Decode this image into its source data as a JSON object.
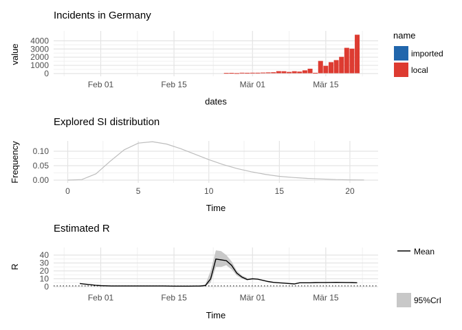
{
  "colors": {
    "imported": "#2166ac",
    "local": "#dd3b31",
    "si_line": "#bdbdbd",
    "mean_line": "#000000",
    "crl_fill": "#c8c8c8",
    "grid_major": "#e3e3e3",
    "grid_minor": "#f0f0f0",
    "axis_text": "#4d4d4d"
  },
  "chart_data": [
    {
      "type": "bar",
      "title": "Incidents in Germany",
      "xlabel": "dates",
      "ylabel": "value",
      "x_ticks": [
        "Feb 01",
        "Feb 15",
        "Mär 01",
        "Mär 15"
      ],
      "x_tick_days": [
        9,
        23,
        38,
        52
      ],
      "xlim_days": [
        0,
        62
      ],
      "x_origin": "2020-01-23",
      "y_ticks": [
        "0",
        "1000",
        "2000",
        "3000",
        "4000"
      ],
      "y_tick_values": [
        0,
        1000,
        2000,
        3000,
        4000
      ],
      "ylim": [
        0,
        4700
      ],
      "legend": {
        "title": "name",
        "position": "right",
        "items": [
          "imported",
          "local"
        ]
      },
      "series": [
        {
          "name": "local",
          "dates": [
            "2020-02-25",
            "2020-02-26",
            "2020-02-27",
            "2020-02-28",
            "2020-02-29",
            "2020-03-01",
            "2020-03-02",
            "2020-03-03",
            "2020-03-04",
            "2020-03-05",
            "2020-03-06",
            "2020-03-07",
            "2020-03-08",
            "2020-03-09",
            "2020-03-10",
            "2020-03-11",
            "2020-03-12",
            "2020-03-13",
            "2020-03-14",
            "2020-03-15",
            "2020-03-16",
            "2020-03-17",
            "2020-03-18",
            "2020-03-19",
            "2020-03-20",
            "2020-03-21"
          ],
          "values": [
            30,
            40,
            10,
            60,
            50,
            60,
            60,
            80,
            100,
            120,
            250,
            240,
            160,
            240,
            200,
            350,
            550,
            50,
            1500,
            900,
            1350,
            1600,
            2000,
            3100,
            3000,
            4700
          ]
        }
      ]
    },
    {
      "type": "line",
      "title": "Explored SI distribution",
      "xlabel": "Time",
      "ylabel": "Frequency",
      "x_ticks": [
        "0",
        "5",
        "10",
        "15",
        "20"
      ],
      "x_tick_values": [
        0,
        5,
        10,
        15,
        20
      ],
      "xlim": [
        -1,
        22
      ],
      "y_ticks": [
        "0.00",
        "0.05",
        "0.10"
      ],
      "y_tick_values": [
        0,
        0.05,
        0.1
      ],
      "ylim": [
        0,
        0.135
      ],
      "series": [
        {
          "x": [
            0,
            1,
            2,
            3,
            4,
            5,
            6,
            7,
            8,
            9,
            10,
            11,
            12,
            13,
            14,
            15,
            16,
            17,
            18,
            19,
            20,
            21
          ],
          "values": [
            0.0,
            0.002,
            0.022,
            0.065,
            0.105,
            0.128,
            0.133,
            0.125,
            0.109,
            0.09,
            0.071,
            0.054,
            0.04,
            0.029,
            0.02,
            0.013,
            0.009,
            0.006,
            0.004,
            0.002,
            0.001,
            0.0005
          ]
        }
      ]
    },
    {
      "type": "line",
      "title": "Estimated R",
      "xlabel": "Time",
      "ylabel": "R",
      "x_ticks": [
        "Feb 01",
        "Feb 15",
        "Mär 01",
        "Mär 15"
      ],
      "x_tick_days": [
        9,
        23,
        38,
        52
      ],
      "xlim_days": [
        0,
        62
      ],
      "x_origin": "2020-01-23",
      "y_ticks": [
        "0",
        "10",
        "20",
        "30",
        "40"
      ],
      "y_tick_values": [
        0,
        10,
        20,
        30,
        40
      ],
      "ylim": [
        -2,
        48
      ],
      "reference_line": 1,
      "legend": {
        "position": "right",
        "items": [
          "Mean",
          "95%CrI"
        ]
      },
      "mean": {
        "name": "Mean",
        "x_days": [
          5,
          6,
          7,
          8,
          9,
          10,
          11,
          12,
          13,
          14,
          15,
          16,
          17,
          18,
          19,
          20,
          21,
          22,
          23,
          24,
          25,
          26,
          27,
          28,
          29,
          30,
          31,
          32,
          33,
          34,
          35,
          36,
          37,
          38,
          39,
          40,
          41,
          42,
          43,
          44,
          45,
          46,
          47,
          48,
          49,
          50,
          51,
          52,
          53,
          54,
          55,
          56,
          57,
          58
        ],
        "values": [
          4,
          3.2,
          2.5,
          1.8,
          1.3,
          1.1,
          1,
          1,
          1,
          1,
          1,
          1,
          1,
          1,
          1,
          1,
          1,
          0.8,
          0.7,
          0.7,
          0.7,
          0.7,
          0.8,
          0.9,
          1.5,
          10,
          35,
          34,
          33,
          27,
          17,
          12,
          9,
          10,
          9.5,
          8,
          6.5,
          5.5,
          5,
          4.5,
          4,
          3.5,
          5,
          5,
          5,
          5.2,
          5.3,
          5.3,
          5.4,
          5.5,
          5.4,
          5.3,
          5.2,
          5
        ]
      },
      "crl": {
        "name": "95%CrI",
        "x_days": [
          28,
          29,
          30,
          31,
          32,
          33,
          34,
          35,
          36,
          37
        ],
        "upper": [
          1,
          3,
          20,
          46,
          45,
          40,
          32,
          20,
          14,
          11
        ],
        "lower": [
          0.6,
          1,
          5,
          25,
          25,
          27,
          22,
          14,
          10,
          8
        ]
      }
    }
  ]
}
